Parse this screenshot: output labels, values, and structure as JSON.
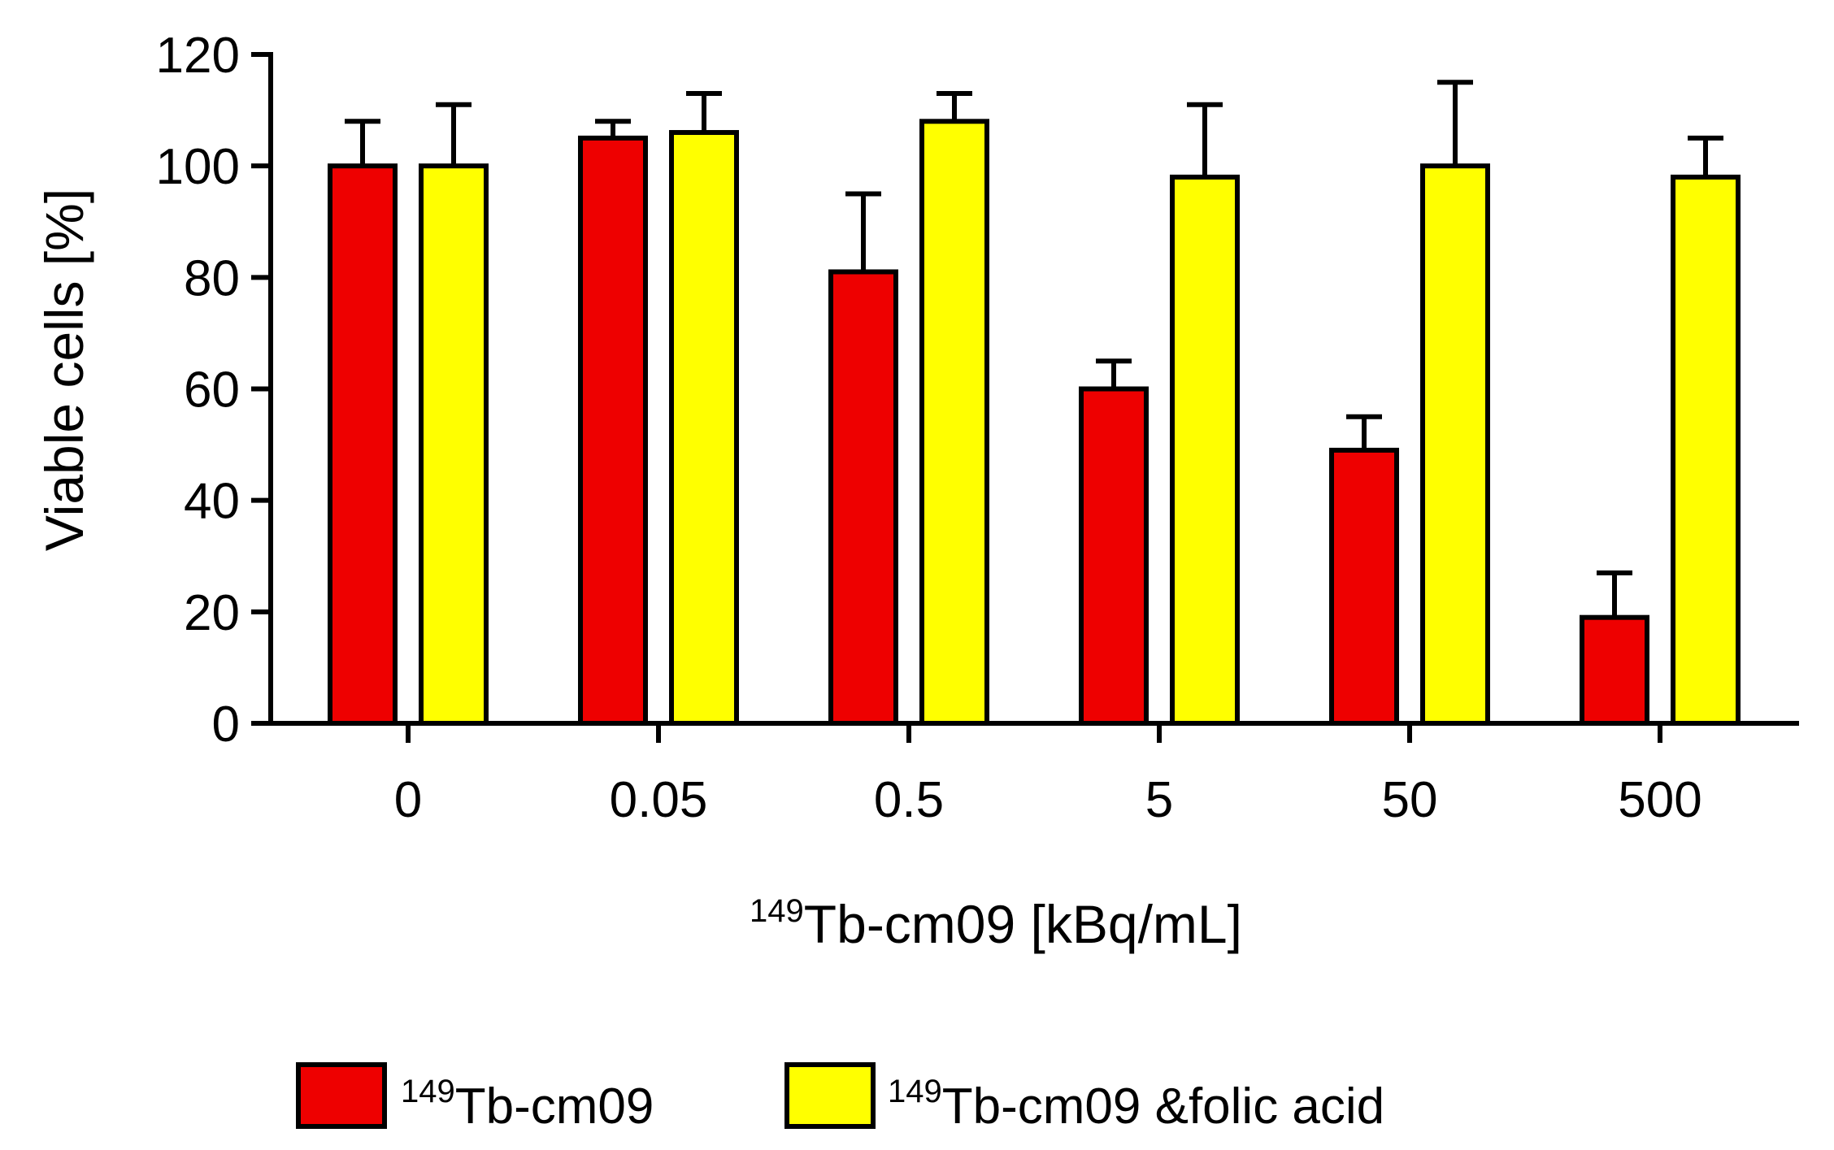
{
  "chart_data": {
    "type": "bar",
    "categories": [
      "0",
      "0.05",
      "0.5",
      "5",
      "50",
      "500"
    ],
    "series": [
      {
        "name": "149Tb-cm09",
        "sup": "149",
        "label": "Tb-cm09",
        "color": "#ee0000",
        "values": [
          100,
          105,
          81,
          60,
          49,
          19
        ],
        "errors": [
          8,
          3,
          14,
          5,
          6,
          8
        ]
      },
      {
        "name": "149Tb-cm09 &folic acid",
        "sup": "149",
        "label": "Tb-cm09 &folic acid",
        "color": "#ffff00",
        "values": [
          100,
          106,
          108,
          98,
          100,
          98
        ],
        "errors": [
          11,
          7,
          5,
          13,
          15,
          7
        ]
      }
    ],
    "ylim": [
      0,
      120
    ],
    "yticks": [
      "0",
      "20",
      "40",
      "60",
      "80",
      "100",
      "120"
    ],
    "ylabel": "Viable cells [%]",
    "xlabel_sup": "149",
    "xlabel": "Tb-cm09 [kBq/mL]",
    "legend_position": "bottom"
  }
}
